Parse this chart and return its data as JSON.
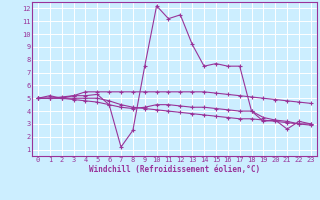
{
  "xlabel": "Windchill (Refroidissement éolien,°C)",
  "bg_color": "#cceeff",
  "line_color": "#993399",
  "grid_color": "#ffffff",
  "xlim": [
    -0.5,
    23.5
  ],
  "ylim": [
    0.5,
    12.5
  ],
  "xticks": [
    0,
    1,
    2,
    3,
    4,
    5,
    6,
    7,
    8,
    9,
    10,
    11,
    12,
    13,
    14,
    15,
    16,
    17,
    18,
    19,
    20,
    21,
    22,
    23
  ],
  "yticks": [
    1,
    2,
    3,
    4,
    5,
    6,
    7,
    8,
    9,
    10,
    11,
    12
  ],
  "line1_x": [
    0,
    1,
    2,
    3,
    4,
    5,
    6,
    7,
    8,
    9,
    10,
    11,
    12,
    13,
    14,
    15,
    16,
    17,
    18,
    19,
    20,
    21,
    22,
    23
  ],
  "line1_y": [
    5.0,
    5.2,
    5.0,
    5.2,
    5.2,
    5.3,
    4.5,
    1.2,
    2.5,
    7.5,
    12.2,
    11.2,
    11.5,
    9.2,
    7.5,
    7.7,
    7.5,
    7.5,
    4.0,
    3.2,
    3.3,
    2.6,
    3.2,
    3.0
  ],
  "line2_x": [
    0,
    1,
    2,
    3,
    4,
    5,
    6,
    7,
    8,
    9,
    10,
    11,
    12,
    13,
    14,
    15,
    16,
    17,
    18,
    19,
    20,
    21,
    22,
    23
  ],
  "line2_y": [
    5.0,
    5.0,
    5.0,
    5.0,
    5.0,
    5.0,
    4.8,
    4.5,
    4.3,
    4.2,
    4.1,
    4.0,
    3.9,
    3.8,
    3.7,
    3.6,
    3.5,
    3.4,
    3.4,
    3.3,
    3.2,
    3.1,
    3.0,
    2.9
  ],
  "line3_x": [
    0,
    1,
    2,
    3,
    4,
    5,
    6,
    7,
    8,
    9,
    10,
    11,
    12,
    13,
    14,
    15,
    16,
    17,
    18,
    19,
    20,
    21,
    22,
    23
  ],
  "line3_y": [
    5.0,
    5.0,
    5.0,
    4.9,
    4.8,
    4.7,
    4.5,
    4.3,
    4.2,
    4.3,
    4.5,
    4.5,
    4.4,
    4.3,
    4.3,
    4.2,
    4.1,
    4.0,
    4.0,
    3.5,
    3.3,
    3.2,
    3.0,
    3.0
  ],
  "line4_x": [
    0,
    1,
    2,
    3,
    4,
    5,
    6,
    7,
    8,
    9,
    10,
    11,
    12,
    13,
    14,
    15,
    16,
    17,
    18,
    19,
    20,
    21,
    22,
    23
  ],
  "line4_y": [
    5.0,
    5.0,
    5.1,
    5.2,
    5.5,
    5.5,
    5.5,
    5.5,
    5.5,
    5.5,
    5.5,
    5.5,
    5.5,
    5.5,
    5.5,
    5.4,
    5.3,
    5.2,
    5.1,
    5.0,
    4.9,
    4.8,
    4.7,
    4.6
  ],
  "xlabel_fontsize": 5.5,
  "tick_fontsize": 5.0,
  "linewidth": 0.8,
  "marker_size": 3
}
